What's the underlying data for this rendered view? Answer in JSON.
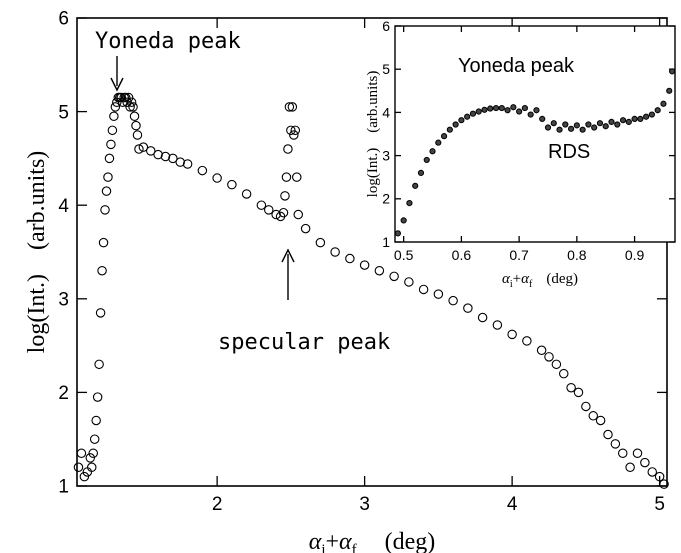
{
  "chart_data": [
    {
      "type": "scatter",
      "xlabel": "α_i+α_f    (deg)",
      "ylabel": "log(Int.)    (arb.units)",
      "xlim": [
        1.05,
        5.05
      ],
      "ylim": [
        1,
        6
      ],
      "x_ticks": [
        2,
        3,
        4,
        5
      ],
      "y_ticks": [
        1,
        2,
        3,
        4,
        5,
        6
      ],
      "grid": false,
      "annotations": [
        {
          "text": "Yoneda peak",
          "x": 1.35,
          "y": 5.2
        },
        {
          "text": "specular peak",
          "x": 2.5,
          "y": 3.75
        }
      ],
      "series": [
        {
          "marker": "open-circle",
          "x": [
            1.06,
            1.08,
            1.1,
            1.12,
            1.14,
            1.15,
            1.16,
            1.17,
            1.18,
            1.19,
            1.2,
            1.21,
            1.22,
            1.23,
            1.24,
            1.25,
            1.26,
            1.27,
            1.28,
            1.29,
            1.3,
            1.31,
            1.32,
            1.33,
            1.34,
            1.35,
            1.36,
            1.37,
            1.38,
            1.39,
            1.4,
            1.41,
            1.42,
            1.43,
            1.44,
            1.45,
            1.46,
            1.47,
            1.5,
            1.55,
            1.6,
            1.65,
            1.7,
            1.75,
            1.8,
            1.9,
            2.0,
            2.1,
            2.2,
            2.3,
            2.35,
            2.4,
            2.43,
            2.45,
            2.46,
            2.47,
            2.48,
            2.49,
            2.5,
            2.51,
            2.52,
            2.53,
            2.54,
            2.55,
            2.6,
            2.7,
            2.8,
            2.9,
            3.0,
            3.1,
            3.2,
            3.3,
            3.4,
            3.5,
            3.6,
            3.7,
            3.8,
            3.9,
            4.0,
            4.1,
            4.2,
            4.25,
            4.3,
            4.35,
            4.4,
            4.45,
            4.5,
            4.55,
            4.6,
            4.65,
            4.7,
            4.75,
            4.8,
            4.85,
            4.9,
            4.95,
            5.0,
            5.03
          ],
          "y": [
            1.2,
            1.35,
            1.1,
            1.15,
            1.3,
            1.2,
            1.35,
            1.5,
            1.7,
            1.95,
            2.3,
            2.85,
            3.3,
            3.6,
            3.95,
            4.15,
            4.3,
            4.5,
            4.65,
            4.8,
            4.95,
            5.05,
            5.1,
            5.15,
            5.15,
            5.15,
            5.1,
            5.15,
            5.15,
            5.1,
            5.15,
            5.05,
            5.1,
            5.05,
            4.95,
            4.85,
            4.75,
            4.6,
            4.62,
            4.58,
            4.54,
            4.52,
            4.5,
            4.46,
            4.44,
            4.37,
            4.29,
            4.22,
            4.12,
            4.0,
            3.95,
            3.9,
            3.88,
            3.92,
            4.1,
            4.3,
            4.6,
            5.05,
            4.8,
            5.05,
            4.75,
            4.8,
            4.3,
            3.9,
            3.75,
            3.6,
            3.5,
            3.43,
            3.36,
            3.3,
            3.24,
            3.18,
            3.1,
            3.05,
            2.98,
            2.9,
            2.8,
            2.72,
            2.62,
            2.55,
            2.45,
            2.38,
            2.3,
            2.2,
            2.05,
            2.0,
            1.85,
            1.75,
            1.7,
            1.55,
            1.45,
            1.35,
            1.2,
            1.35,
            1.25,
            1.15,
            1.1,
            1.02
          ]
        }
      ]
    },
    {
      "type": "scatter",
      "role": "inset",
      "xlabel": "α_i+α_f    (deg)",
      "ylabel": "log(Int.)    (arb.units)",
      "xlim": [
        0.485,
        0.97
      ],
      "ylim": [
        1,
        6
      ],
      "x_ticks": [
        0.5,
        0.6,
        0.7,
        0.8,
        0.9
      ],
      "y_ticks": [
        1,
        2,
        3,
        4,
        5,
        6
      ],
      "grid": false,
      "annotations": [
        {
          "text": "Yoneda peak",
          "x": 0.73,
          "y": 4.95
        },
        {
          "text": "RDS",
          "x": 0.8,
          "y": 3.2
        }
      ],
      "series": [
        {
          "marker": "dense-circle",
          "x": [
            0.49,
            0.5,
            0.51,
            0.52,
            0.53,
            0.54,
            0.55,
            0.56,
            0.57,
            0.58,
            0.59,
            0.6,
            0.61,
            0.62,
            0.63,
            0.64,
            0.65,
            0.66,
            0.67,
            0.68,
            0.69,
            0.7,
            0.71,
            0.72,
            0.73,
            0.74,
            0.75,
            0.76,
            0.77,
            0.78,
            0.79,
            0.8,
            0.81,
            0.82,
            0.83,
            0.84,
            0.85,
            0.86,
            0.87,
            0.88,
            0.89,
            0.9,
            0.91,
            0.92,
            0.93,
            0.94,
            0.95,
            0.96,
            0.965
          ],
          "y": [
            1.2,
            1.5,
            1.9,
            2.3,
            2.6,
            2.9,
            3.1,
            3.3,
            3.45,
            3.6,
            3.72,
            3.82,
            3.9,
            3.97,
            4.02,
            4.06,
            4.09,
            4.1,
            4.1,
            4.05,
            4.12,
            4.02,
            4.1,
            3.95,
            4.05,
            3.85,
            3.65,
            3.75,
            3.6,
            3.72,
            3.62,
            3.7,
            3.6,
            3.72,
            3.65,
            3.75,
            3.68,
            3.78,
            3.72,
            3.82,
            3.78,
            3.85,
            3.85,
            3.9,
            3.95,
            4.05,
            4.2,
            4.5,
            4.95
          ]
        }
      ]
    }
  ]
}
